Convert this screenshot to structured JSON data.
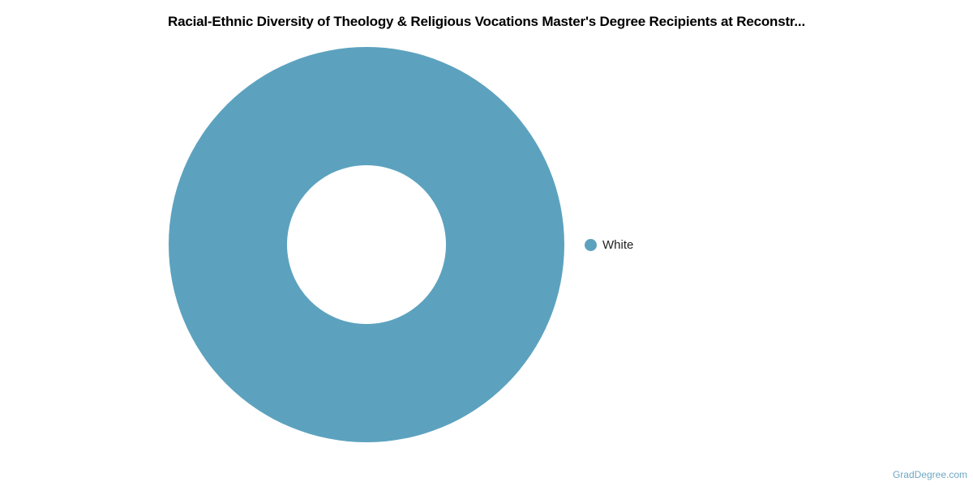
{
  "chart_data": {
    "type": "pie",
    "title": "Racial-Ethnic Diversity of Theology & Religious Vocations Master's Degree Recipients at Reconstr...",
    "donut": true,
    "categories": [
      "White"
    ],
    "values": [
      100
    ],
    "colors": [
      "#5ca2bf"
    ],
    "legend_position": "right"
  },
  "watermark": "GradDegree.com"
}
